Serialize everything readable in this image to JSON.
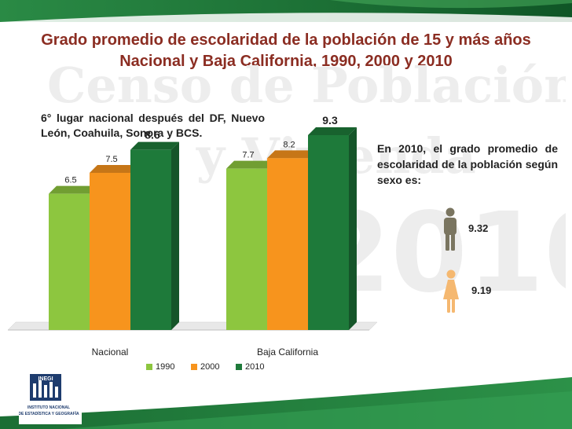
{
  "slide": {
    "title_line1": "Grado promedio de escolaridad de la población de 15 y más años",
    "title_line2": "Nacional y Baja California, 1990, 2000 y 2010",
    "note": "6° lugar nacional después del DF, Nuevo León, Coahuila, Sonora y BCS.",
    "side_text": "En 2010, el grado promedio de escolaridad de la población según sexo es:",
    "male_value": "9.32",
    "female_value": "9.19",
    "logo_text": "INEGI",
    "logo_caption_1": "INSTITUTO NACIONAL",
    "logo_caption_2": "DE ESTADÍSTICA Y GEOGRAFÍA",
    "watermark_line1": "Censo de Población",
    "watermark_line2": "y Vivienda",
    "watermark_line3": "2010"
  },
  "colors": {
    "band_green": "#1e7a3a",
    "title_red": "#8b2d22",
    "male_icon": "#7a7560",
    "female_icon": "#f5b870"
  },
  "chart_data": {
    "type": "bar",
    "categories": [
      "Nacional",
      "Baja California"
    ],
    "series": [
      {
        "name": "1990",
        "values": [
          6.5,
          7.7
        ],
        "color": "#8dc63f"
      },
      {
        "name": "2000",
        "values": [
          7.5,
          8.2
        ],
        "color": "#f7941d"
      },
      {
        "name": "2010",
        "values": [
          8.6,
          9.3
        ],
        "color": "#1e7a3a"
      }
    ],
    "data_labels": [
      [
        "6.5",
        "7.5",
        "8.6"
      ],
      [
        "7.7",
        "8.2",
        "9.3"
      ]
    ],
    "ylim": [
      0,
      10.5
    ],
    "grid": false,
    "legend_position": "bottom"
  }
}
